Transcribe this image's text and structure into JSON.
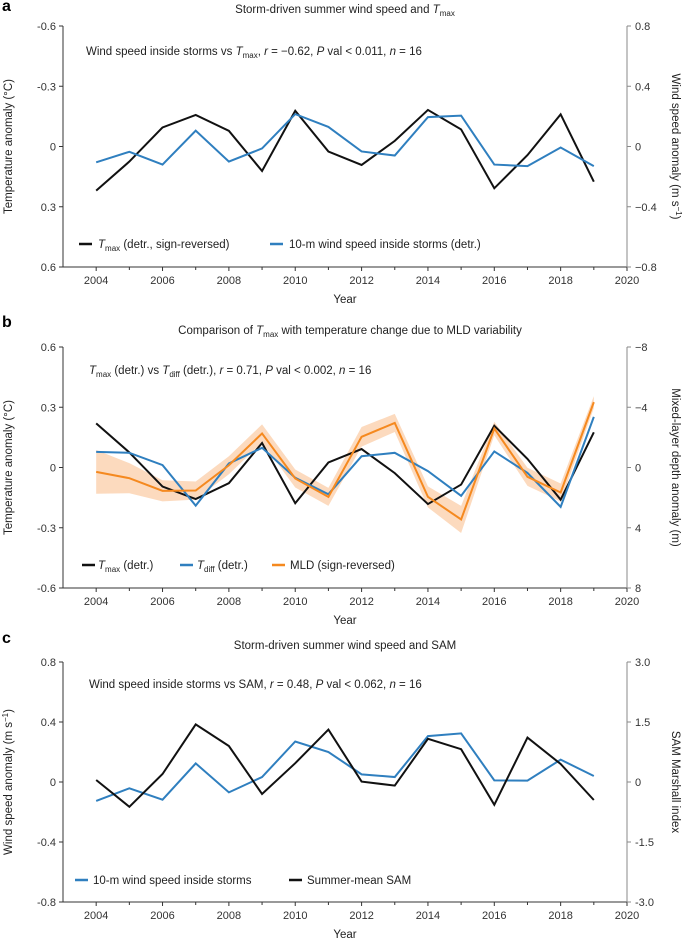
{
  "colors": {
    "black": "#111111",
    "blue": "#2f7fbf",
    "orange": "#f5891f",
    "band": "#fbd4b3",
    "right_axis": "#888888"
  },
  "chart_data": [
    {
      "panel": "a",
      "type": "line",
      "title": [
        {
          "text": "Storm-driven summer wind speed and "
        },
        {
          "text": "T",
          "style": "i"
        },
        {
          "text": "max",
          "style": "sub"
        }
      ],
      "annotation": [
        {
          "text": "Wind speed inside storms vs "
        },
        {
          "text": "T",
          "style": "i"
        },
        {
          "text": "max",
          "style": "sub"
        },
        {
          "text": ", "
        },
        {
          "text": "r",
          "style": "i"
        },
        {
          "text": " = −0.62, "
        },
        {
          "text": "P",
          "style": "i"
        },
        {
          "text": " val < 0.011, "
        },
        {
          "text": "n",
          "style": "i"
        },
        {
          "text": " = 16"
        }
      ],
      "xlabel": "Year",
      "xlim": [
        2003,
        2020
      ],
      "xticks": [
        "2004",
        "2006",
        "2008",
        "2010",
        "2012",
        "2014",
        "2016",
        "2018",
        "2020"
      ],
      "ylabel": [
        {
          "text": "Temperature anomaly (°C)"
        }
      ],
      "ylim": [
        -0.6,
        0.6
      ],
      "y_inverted": true,
      "yticks": [
        "-0.6",
        "-0.3",
        "0",
        "0.3",
        "0.6"
      ],
      "y2label": [
        {
          "text": "Wind speed anomaly (m s"
        },
        {
          "text": "−1",
          "style": "sup"
        },
        {
          "text": ")"
        }
      ],
      "y2lim": [
        -0.8,
        0.8
      ],
      "y2ticks": [
        "0.8",
        "0.4",
        "0",
        "−0.4",
        "−0.8"
      ],
      "x": [
        2004,
        2005,
        2006,
        2007,
        2008,
        2009,
        2010,
        2011,
        2012,
        2013,
        2014,
        2015,
        2016,
        2017,
        2018,
        2019
      ],
      "series": [
        {
          "name": [
            {
              "text": "T",
              "style": "i"
            },
            {
              "text": "max",
              "style": "sub"
            },
            {
              "text": " (detr., sign-reversed)"
            }
          ],
          "axis": "left",
          "color": "#111111",
          "values": [
            0.22,
            0.075,
            -0.095,
            -0.157,
            -0.078,
            0.122,
            -0.178,
            0.025,
            0.092,
            -0.028,
            -0.182,
            -0.085,
            0.208,
            0.043,
            -0.16,
            0.175
          ]
        },
        {
          "name": [
            {
              "text": "10-m wind speed inside storms (detr.)"
            }
          ],
          "axis": "right",
          "color": "#2f7fbf",
          "values": [
            -0.105,
            -0.035,
            -0.12,
            0.105,
            -0.1,
            -0.013,
            0.215,
            0.13,
            -0.033,
            -0.06,
            0.195,
            0.205,
            -0.12,
            -0.13,
            -0.007,
            -0.13
          ]
        }
      ]
    },
    {
      "panel": "b",
      "type": "line",
      "title": [
        {
          "text": "Comparison of "
        },
        {
          "text": "T",
          "style": "i"
        },
        {
          "text": "max",
          "style": "sub"
        },
        {
          "text": " with temperature change due to MLD variability"
        }
      ],
      "annotation": [
        {
          "text": "T",
          "style": "i"
        },
        {
          "text": "max",
          "style": "sub"
        },
        {
          "text": " (detr.) vs "
        },
        {
          "text": "T",
          "style": "i"
        },
        {
          "text": "diff",
          "style": "sub"
        },
        {
          "text": " (detr.), "
        },
        {
          "text": "r",
          "style": "i"
        },
        {
          "text": " = 0.71, "
        },
        {
          "text": "P",
          "style": "i"
        },
        {
          "text": " val < 0.002, "
        },
        {
          "text": "n",
          "style": "i"
        },
        {
          "text": " = 16"
        }
      ],
      "xlabel": "Year",
      "xlim": [
        2003,
        2020
      ],
      "xticks": [
        "2004",
        "2006",
        "2008",
        "2010",
        "2012",
        "2014",
        "2016",
        "2018",
        "2020"
      ],
      "ylabel": [
        {
          "text": "Temperature anomaly (°C)"
        }
      ],
      "ylim": [
        -0.6,
        0.6
      ],
      "y_inverted": false,
      "yticks": [
        "0.6",
        "0.3",
        "0",
        "-0.3",
        "-0.6"
      ],
      "y2label": [
        {
          "text": "Mixed-layer depth anomaly (m)"
        }
      ],
      "y2lim": [
        -8,
        8
      ],
      "y2_inverted": true,
      "y2ticks": [
        "−8",
        "−4",
        "0",
        "4",
        "8"
      ],
      "x": [
        2004,
        2005,
        2006,
        2007,
        2008,
        2009,
        2010,
        2011,
        2012,
        2013,
        2014,
        2015,
        2016,
        2017,
        2018,
        2019
      ],
      "series": [
        {
          "name": [
            {
              "text": "T",
              "style": "i"
            },
            {
              "text": "max",
              "style": "sub"
            },
            {
              "text": " (detr.)"
            }
          ],
          "axis": "left",
          "color": "#111111",
          "values": [
            0.22,
            0.075,
            -0.095,
            -0.157,
            -0.078,
            0.122,
            -0.178,
            0.025,
            0.092,
            -0.028,
            -0.182,
            -0.085,
            0.208,
            0.043,
            -0.16,
            0.175
          ]
        },
        {
          "name": [
            {
              "text": "T",
              "style": "i"
            },
            {
              "text": "diff",
              "style": "sub"
            },
            {
              "text": " (detr.)"
            }
          ],
          "axis": "left",
          "color": "#2f7fbf",
          "values": [
            0.078,
            0.073,
            0.012,
            -0.19,
            0.02,
            0.098,
            -0.051,
            -0.133,
            0.056,
            0.073,
            -0.018,
            -0.141,
            0.08,
            -0.027,
            -0.196,
            0.252
          ]
        },
        {
          "name": [
            {
              "text": "MLD (sign-reversed)"
            }
          ],
          "axis": "right",
          "color": "#f5891f",
          "values": [
            0.29,
            0.71,
            1.55,
            1.53,
            -0.15,
            -2.26,
            0.73,
            1.95,
            -2.04,
            -2.96,
            1.95,
            3.45,
            -2.59,
            0.62,
            1.66,
            -4.34
          ],
          "uncertainty": [
            1.45,
            1.0,
            0.7,
            0.6,
            0.6,
            0.6,
            0.6,
            0.6,
            0.65,
            0.6,
            0.7,
            0.9,
            0.45,
            0.6,
            0.6,
            0.4
          ]
        }
      ]
    },
    {
      "panel": "c",
      "type": "line",
      "title": [
        {
          "text": "Storm-driven summer wind speed and SAM"
        }
      ],
      "annotation": [
        {
          "text": "Wind speed inside storms vs SAM, "
        },
        {
          "text": "r",
          "style": "i"
        },
        {
          "text": " = 0.48, "
        },
        {
          "text": "P",
          "style": "i"
        },
        {
          "text": " val < 0.062, "
        },
        {
          "text": "n",
          "style": "i"
        },
        {
          "text": " = 16"
        }
      ],
      "xlabel": "Year",
      "xlim": [
        2003,
        2020
      ],
      "xticks": [
        "2004",
        "2006",
        "2008",
        "2010",
        "2012",
        "2014",
        "2016",
        "2018",
        "2020"
      ],
      "ylabel": [
        {
          "text": "Wind speed anomaly (m s"
        },
        {
          "text": "−1",
          "style": "sup"
        },
        {
          "text": ")"
        }
      ],
      "ylim": [
        -0.8,
        0.8
      ],
      "y_inverted": false,
      "yticks": [
        "0.8",
        "0.4",
        "0",
        "-0.4",
        "-0.8"
      ],
      "y2label": [
        {
          "text": "SAM Marshall index"
        }
      ],
      "y2lim": [
        -3.0,
        3.0
      ],
      "y2ticks": [
        "3.0",
        "1.5",
        "0",
        "-1.5",
        "-3.0"
      ],
      "x": [
        2004,
        2005,
        2006,
        2007,
        2008,
        2009,
        2010,
        2011,
        2012,
        2013,
        2014,
        2015,
        2016,
        2017,
        2018,
        2019
      ],
      "series": [
        {
          "name": [
            {
              "text": "10-m wind speed inside storms"
            }
          ],
          "axis": "left",
          "color": "#2f7fbf",
          "values": [
            -0.126,
            -0.042,
            -0.118,
            0.124,
            -0.069,
            0.033,
            0.27,
            0.2,
            0.051,
            0.033,
            0.306,
            0.324,
            0.011,
            0.009,
            0.149,
            0.04
          ]
        },
        {
          "name": [
            {
              "text": "Summer-mean SAM"
            }
          ],
          "axis": "right",
          "color": "#111111",
          "values": [
            0.05,
            -0.62,
            0.2,
            1.44,
            0.9,
            -0.3,
            0.47,
            1.31,
            0.01,
            -0.09,
            1.08,
            0.82,
            -0.57,
            1.11,
            0.45,
            -0.45
          ]
        }
      ]
    }
  ],
  "panel_letters": [
    "a",
    "b",
    "c"
  ]
}
